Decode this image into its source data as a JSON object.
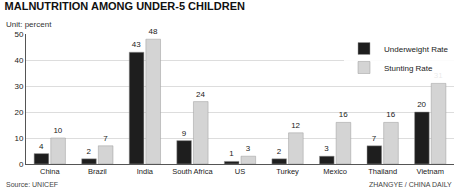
{
  "chart_data": {
    "type": "bar",
    "title": "MALNUTRITION AMONG UNDER-5 CHILDREN",
    "subtitle": "Unit: percent",
    "annotations": [
      "Source: UNICEF",
      "ZHANGYE / CHINA DAILY"
    ],
    "categories": [
      "China",
      "Brazil",
      "India",
      "South Africa",
      "US",
      "Turkey",
      "Mexico",
      "Thailand",
      "Vietnam"
    ],
    "series": [
      {
        "name": "Underweight Rate",
        "color": "#1e1e1e",
        "values": [
          4,
          2,
          43,
          9,
          1,
          2,
          3,
          7,
          20
        ]
      },
      {
        "name": "Stunting Rate",
        "color": "#d4d4d4",
        "values": [
          10,
          7,
          48,
          24,
          3,
          12,
          16,
          16,
          31
        ]
      }
    ],
    "ylim": [
      0,
      50
    ],
    "yticks": [
      0,
      10,
      20,
      30,
      40,
      50
    ],
    "grid": true,
    "legend": "top right",
    "data_labels": true
  }
}
